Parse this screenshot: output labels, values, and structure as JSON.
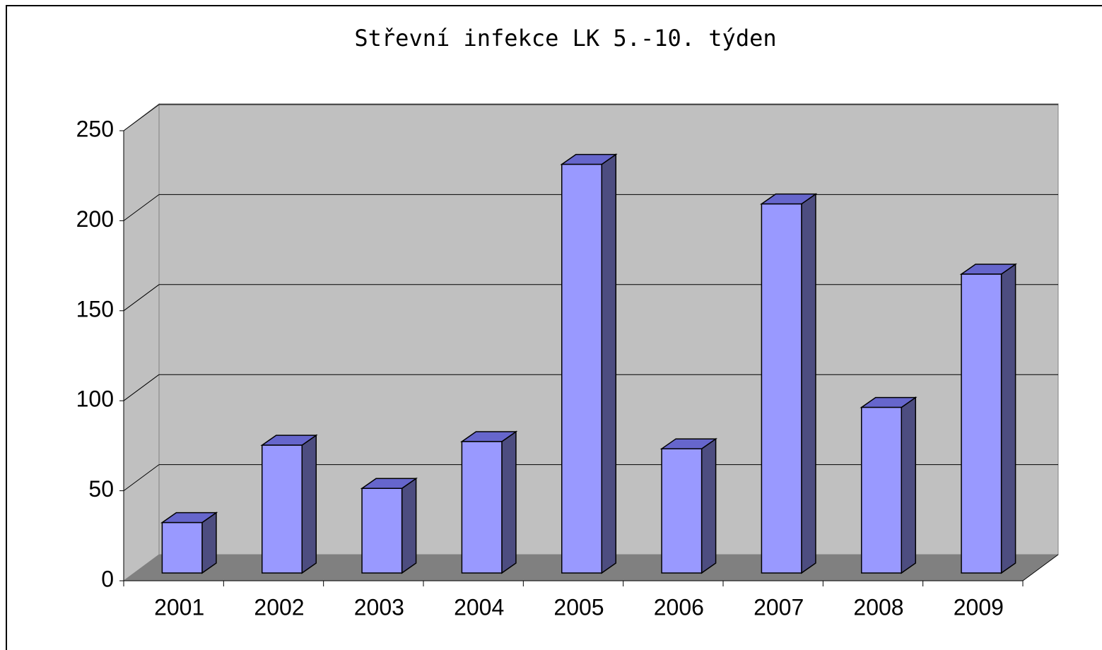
{
  "chart_data": {
    "type": "bar3d",
    "title": "Střevní infekce LK 5.-10. týden",
    "categories": [
      "2001",
      "2002",
      "2003",
      "2004",
      "2005",
      "2006",
      "2007",
      "2008",
      "2009"
    ],
    "values": [
      28,
      71,
      47,
      73,
      227,
      69,
      205,
      92,
      166
    ],
    "color": "#9999ff",
    "ylim": [
      0,
      250
    ],
    "yticks": [
      0,
      50,
      100,
      150,
      200,
      250
    ],
    "grid": true
  }
}
